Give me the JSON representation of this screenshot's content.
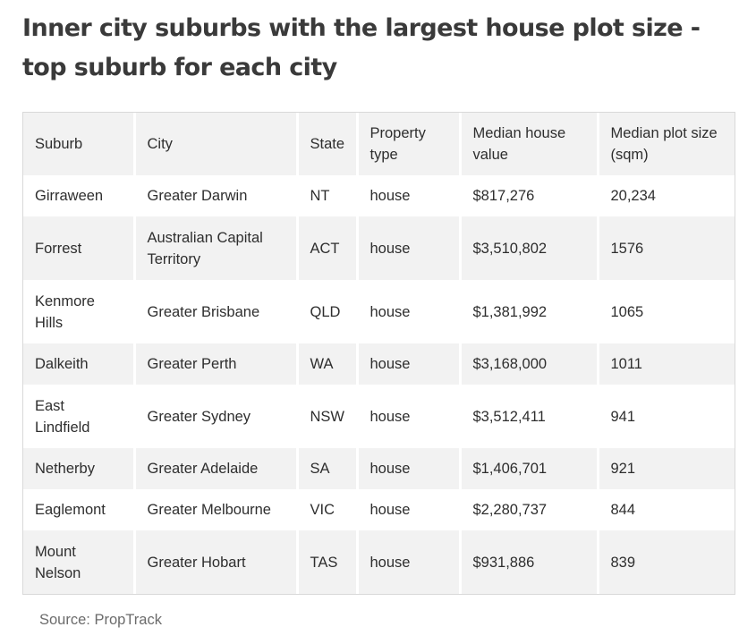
{
  "title": "Inner city suburbs with the largest house plot size - top suburb for each city",
  "table": {
    "headers": [
      "Suburb",
      "City",
      "State",
      "Property type",
      "Median house value",
      "Median plot size (sqm)"
    ],
    "rows": [
      [
        "Girraween",
        "Greater Darwin",
        "NT",
        "house",
        "$817,276",
        "20,234"
      ],
      [
        "Forrest",
        "Australian Capital Territory",
        "ACT",
        "house",
        "$3,510,802",
        "1576"
      ],
      [
        "Kenmore Hills",
        "Greater Brisbane",
        "QLD",
        "house",
        "$1,381,992",
        "1065"
      ],
      [
        "Dalkeith",
        "Greater Perth",
        "WA",
        "house",
        "$3,168,000",
        "1011"
      ],
      [
        "East Lindfield",
        "Greater Sydney",
        "NSW",
        "house",
        "$3,512,411",
        "941"
      ],
      [
        "Netherby",
        "Greater Adelaide",
        "SA",
        "house",
        "$1,406,701",
        "921"
      ],
      [
        "Eaglemont",
        "Greater Melbourne",
        "VIC",
        "house",
        "$2,280,737",
        "844"
      ],
      [
        "Mount Nelson",
        "Greater Hobart",
        "TAS",
        "house",
        "$931,886",
        "839"
      ]
    ]
  },
  "source": "Source: PropTrack"
}
